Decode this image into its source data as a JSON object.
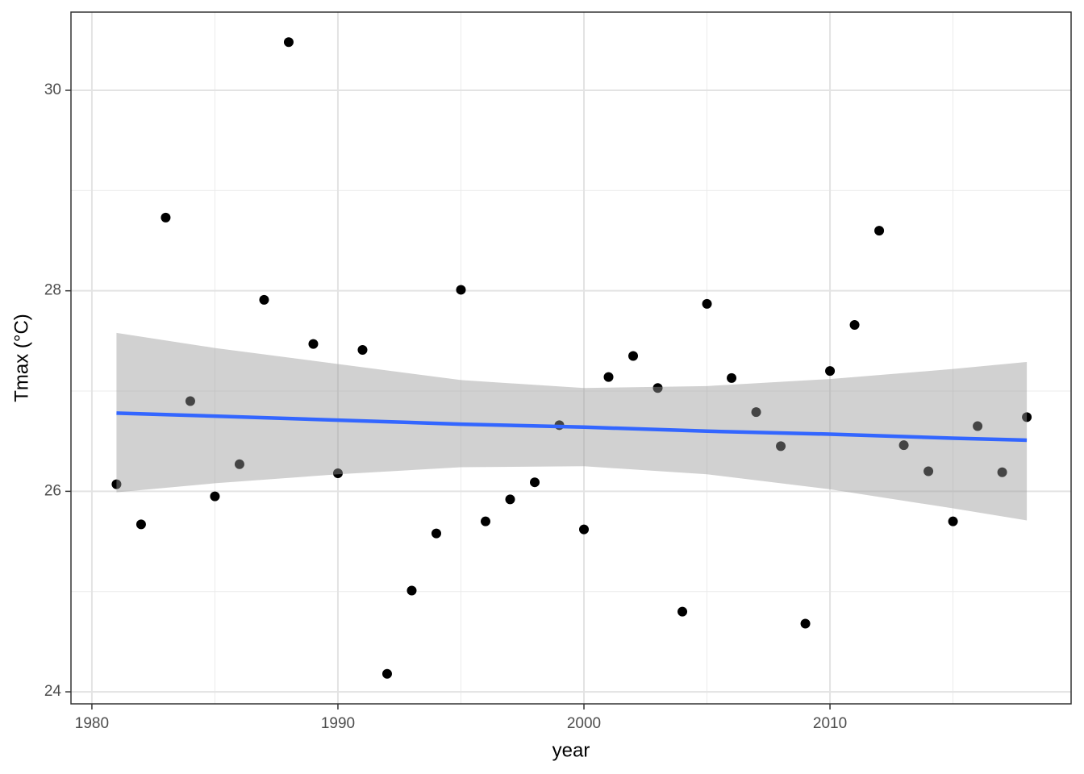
{
  "chart_data": {
    "type": "scatter",
    "x_label": "year",
    "y_label": "Tmax (°C)",
    "xlim": [
      1979.15,
      2019.8
    ],
    "ylim": [
      23.88,
      30.78
    ],
    "xticks": [
      1980,
      1990,
      2000,
      2010
    ],
    "yticks": [
      24,
      26,
      28,
      30
    ],
    "xminor": [
      1985,
      1995,
      2005,
      2015
    ],
    "yminor": [
      25,
      27,
      29
    ],
    "grid": true,
    "color": "#000000",
    "x": [
      1981,
      1982,
      1983,
      1984,
      1985,
      1986,
      1987,
      1988,
      1989,
      1990,
      1991,
      1992,
      1993,
      1994,
      1995,
      1996,
      1997,
      1998,
      1999,
      2000,
      2001,
      2002,
      2003,
      2004,
      2005,
      2006,
      2007,
      2008,
      2009,
      2010,
      2011,
      2012,
      2013,
      2014,
      2015,
      2016,
      2017,
      2018
    ],
    "values": [
      26.07,
      25.67,
      28.73,
      26.9,
      25.95,
      26.27,
      27.91,
      30.48,
      27.47,
      26.18,
      27.41,
      24.18,
      25.01,
      25.58,
      28.01,
      25.7,
      25.92,
      26.09,
      26.66,
      25.62,
      27.14,
      27.35,
      27.03,
      24.8,
      27.87,
      27.13,
      26.79,
      26.45,
      24.68,
      27.2,
      27.66,
      28.6,
      26.46,
      26.2,
      25.7,
      26.65,
      26.19,
      26.74
    ],
    "smooth": {
      "color": "#3366FF",
      "band_color": "#999999",
      "x": [
        1981,
        1985,
        1990,
        1995,
        2000,
        2005,
        2010,
        2015,
        2018
      ],
      "fit": [
        26.78,
        26.75,
        26.71,
        26.67,
        26.64,
        26.6,
        26.57,
        26.53,
        26.51
      ],
      "lower": [
        25.99,
        26.08,
        26.17,
        26.24,
        26.25,
        26.17,
        26.02,
        25.83,
        25.71
      ],
      "upper": [
        27.58,
        27.43,
        27.27,
        27.11,
        27.03,
        27.05,
        27.12,
        27.22,
        27.29
      ]
    }
  }
}
